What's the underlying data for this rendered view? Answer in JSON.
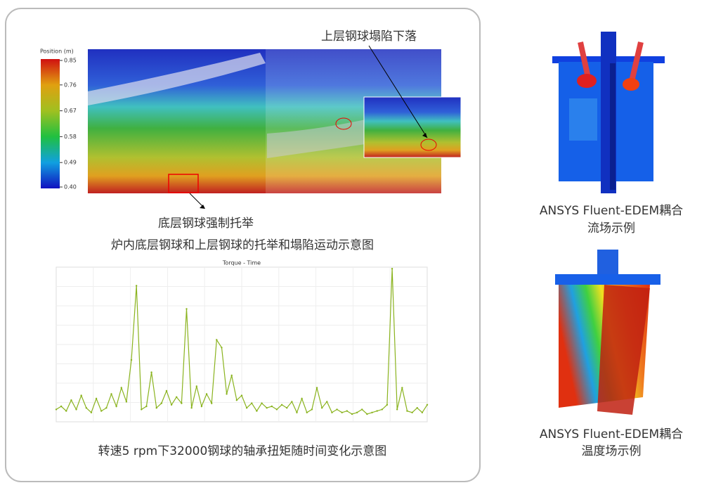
{
  "figure1": {
    "colorbar": {
      "title": "Position (m)",
      "lim": [
        0.4,
        0.85
      ],
      "ticks": [
        0.85,
        0.76,
        0.67,
        0.58,
        0.49,
        {
          "value": 0.4,
          "label": "0.40"
        }
      ]
    },
    "annotation_top": "上层钢球塌陷下落",
    "annotation_bottom": "底层钢球强制托举",
    "caption": "炉内底层钢球和上层钢球的托举和塌陷运动示意图"
  },
  "chart_data": {
    "type": "line",
    "title": "Torque - Time",
    "color": "#8ab31e",
    "ylim": [
      0,
      100
    ],
    "values": [
      8,
      10,
      7,
      14,
      8,
      17,
      9,
      6,
      15,
      7,
      9,
      18,
      10,
      22,
      13,
      40,
      88,
      8,
      10,
      32,
      9,
      12,
      20,
      11,
      16,
      12,
      73,
      9,
      23,
      10,
      18,
      12,
      53,
      48,
      18,
      30,
      14,
      17,
      9,
      12,
      7,
      12,
      9,
      10,
      8,
      11,
      9,
      13,
      6,
      15,
      6,
      8,
      22,
      9,
      13,
      6,
      8,
      6,
      7,
      5,
      6,
      8,
      5,
      6,
      7,
      8,
      11,
      99,
      8,
      22,
      7,
      6,
      9,
      6,
      11
    ]
  },
  "chart_caption": "转速5 rpm下32000钢球的轴承扭矩随时间变化示意图",
  "right": {
    "flow_caption": [
      "ANSYS Fluent-EDEM耦合",
      "流场示例"
    ],
    "temp_caption": [
      "ANSYS Fluent-EDEM耦合",
      "温度场示例"
    ]
  }
}
